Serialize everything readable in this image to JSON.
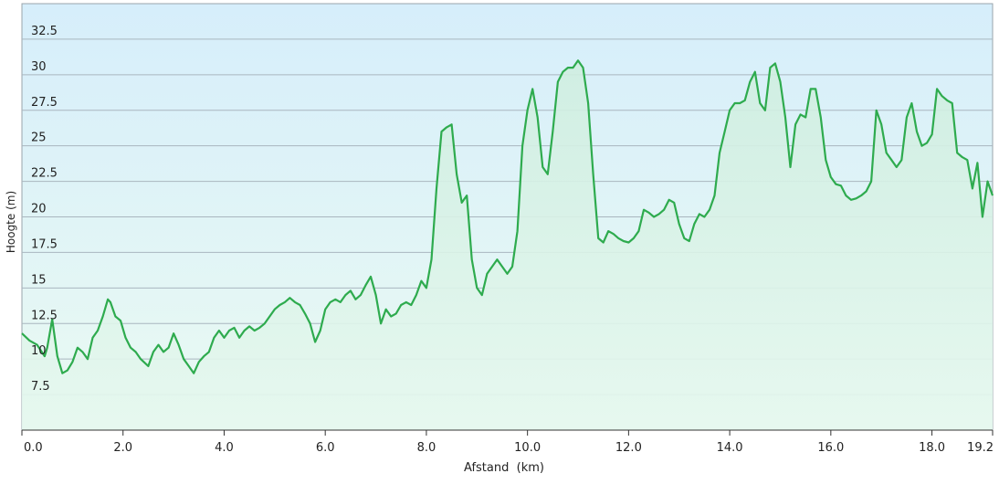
{
  "chart_data": {
    "type": "area",
    "xlabel": "Afstand  (km)",
    "ylabel": "Hoogte (m)",
    "xlim": [
      0,
      19.2
    ],
    "ylim": [
      5,
      35
    ],
    "x_ticks": [
      "0.0",
      "2.0",
      "4.0",
      "6.0",
      "8.0",
      "10.0",
      "12.0",
      "14.0",
      "16.0",
      "18.0",
      "19.2"
    ],
    "x_tick_values": [
      0,
      2,
      4,
      6,
      8,
      10,
      12,
      14,
      16,
      18,
      19.2
    ],
    "y_ticks": [
      "7.5",
      "10",
      "12.5",
      "15",
      "17.5",
      "20",
      "22.5",
      "25",
      "27.5",
      "30",
      "32.5"
    ],
    "y_tick_values": [
      7.5,
      10,
      12.5,
      15,
      17.5,
      20,
      22.5,
      25,
      27.5,
      30,
      32.5
    ],
    "grid": "horizontal",
    "line_color": "#2eab4e",
    "series": [
      {
        "x": [
          0.0,
          0.15,
          0.3,
          0.45,
          0.5,
          0.6,
          0.7,
          0.8,
          0.9,
          1.0,
          1.1,
          1.2,
          1.3,
          1.4,
          1.5,
          1.6,
          1.7,
          1.75,
          1.85,
          1.95,
          2.05,
          2.15,
          2.25,
          2.35,
          2.5,
          2.6,
          2.7,
          2.8,
          2.9,
          3.0,
          3.1,
          3.2,
          3.3,
          3.4,
          3.5,
          3.6,
          3.7,
          3.8,
          3.9,
          4.0,
          4.1,
          4.2,
          4.3,
          4.4,
          4.5,
          4.6,
          4.7,
          4.8,
          5.0,
          5.1,
          5.2,
          5.3,
          5.4,
          5.5,
          5.6,
          5.7,
          5.8,
          5.9,
          6.0,
          6.1,
          6.2,
          6.3,
          6.4,
          6.5,
          6.6,
          6.7,
          6.8,
          6.9,
          7.0,
          7.1,
          7.2,
          7.3,
          7.4,
          7.5,
          7.6,
          7.7,
          7.8,
          7.9,
          8.0,
          8.1,
          8.2,
          8.3,
          8.4,
          8.5,
          8.6,
          8.7,
          8.8,
          8.9,
          9.0,
          9.1,
          9.2,
          9.3,
          9.4,
          9.5,
          9.6,
          9.7,
          9.8,
          9.9,
          10.0,
          10.1,
          10.2,
          10.3,
          10.4,
          10.5,
          10.6,
          10.7,
          10.8,
          10.9,
          11.0,
          11.1,
          11.2,
          11.3,
          11.4,
          11.5,
          11.6,
          11.7,
          11.8,
          11.9,
          12.0,
          12.1,
          12.2,
          12.3,
          12.4,
          12.5,
          12.6,
          12.7,
          12.8,
          12.9,
          13.0,
          13.1,
          13.2,
          13.3,
          13.4,
          13.5,
          13.6,
          13.7,
          13.8,
          13.9,
          14.0,
          14.1,
          14.2,
          14.3,
          14.4,
          14.5,
          14.6,
          14.7,
          14.8,
          14.9,
          15.0,
          15.1,
          15.2,
          15.3,
          15.4,
          15.5,
          15.6,
          15.7,
          15.8,
          15.9,
          16.0,
          16.1,
          16.2,
          16.3,
          16.4,
          16.5,
          16.6,
          16.7,
          16.8,
          16.9,
          17.0,
          17.1,
          17.2,
          17.3,
          17.4,
          17.5,
          17.6,
          17.7,
          17.8,
          17.9,
          18.0,
          18.1,
          18.2,
          18.3,
          18.4,
          18.5,
          18.6,
          18.7,
          18.8,
          18.9,
          19.0,
          19.1,
          19.2
        ],
        "y": [
          11.8,
          11.3,
          11.0,
          10.2,
          10.8,
          12.8,
          10.2,
          9.0,
          9.2,
          9.8,
          10.8,
          10.5,
          10.0,
          11.5,
          12.0,
          13.0,
          14.2,
          14.0,
          13.0,
          12.7,
          11.5,
          10.8,
          10.5,
          10.0,
          9.5,
          10.5,
          11.0,
          10.5,
          10.8,
          11.8,
          11.0,
          10.0,
          9.5,
          9.0,
          9.8,
          10.2,
          10.5,
          11.5,
          12.0,
          11.5,
          12.0,
          12.2,
          11.5,
          12.0,
          12.3,
          12.0,
          12.2,
          12.5,
          13.5,
          13.8,
          14.0,
          14.3,
          14.0,
          13.8,
          13.2,
          12.5,
          11.2,
          12.0,
          13.5,
          14.0,
          14.2,
          14.0,
          14.5,
          14.8,
          14.2,
          14.5,
          15.2,
          15.8,
          14.5,
          12.5,
          13.5,
          13.0,
          13.2,
          13.8,
          14.0,
          13.8,
          14.5,
          15.5,
          15.0,
          17.0,
          22.0,
          26.0,
          26.3,
          26.5,
          23.0,
          21.0,
          21.5,
          17.0,
          15.0,
          14.5,
          16.0,
          16.5,
          17.0,
          16.5,
          16.0,
          16.5,
          19.0,
          25.0,
          27.5,
          29.0,
          27.0,
          23.5,
          23.0,
          26.0,
          29.5,
          30.2,
          30.5,
          30.5,
          31.0,
          30.5,
          28.0,
          23.0,
          18.5,
          18.2,
          19.0,
          18.8,
          18.5,
          18.3,
          18.2,
          18.5,
          19.0,
          20.5,
          20.3,
          20.0,
          20.2,
          20.5,
          21.2,
          21.0,
          19.5,
          18.5,
          18.3,
          19.5,
          20.2,
          20.0,
          20.5,
          21.5,
          24.5,
          26.0,
          27.5,
          28.0,
          28.0,
          28.2,
          29.5,
          30.2,
          28.0,
          27.5,
          30.5,
          30.8,
          29.5,
          27.0,
          23.5,
          26.5,
          27.2,
          27.0,
          29.0,
          29.0,
          27.0,
          24.0,
          22.8,
          22.3,
          22.2,
          21.5,
          21.2,
          21.3,
          21.5,
          21.8,
          22.5,
          27.5,
          26.5,
          24.5,
          24.0,
          23.5,
          24.0,
          27.0,
          28.0,
          26.0,
          25.0,
          25.2,
          25.8,
          29.0,
          28.5,
          28.2,
          28.0,
          24.5,
          24.2,
          24.0,
          22.0,
          23.8,
          20.0,
          22.5,
          21.5
        ]
      }
    ]
  }
}
